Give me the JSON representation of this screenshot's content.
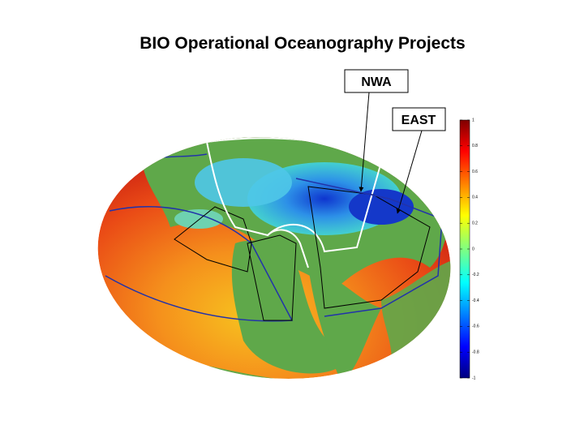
{
  "title": "BIO Operational Oceanography Projects",
  "callouts": [
    {
      "label": "NWA"
    },
    {
      "label": "EAST"
    }
  ],
  "colorbar": {
    "lim": [
      -1,
      1
    ],
    "ticks": [
      1,
      0.8,
      0.6,
      0.4,
      0.2,
      0,
      -0.2,
      -0.4,
      -0.6,
      -0.8,
      -1
    ]
  }
}
